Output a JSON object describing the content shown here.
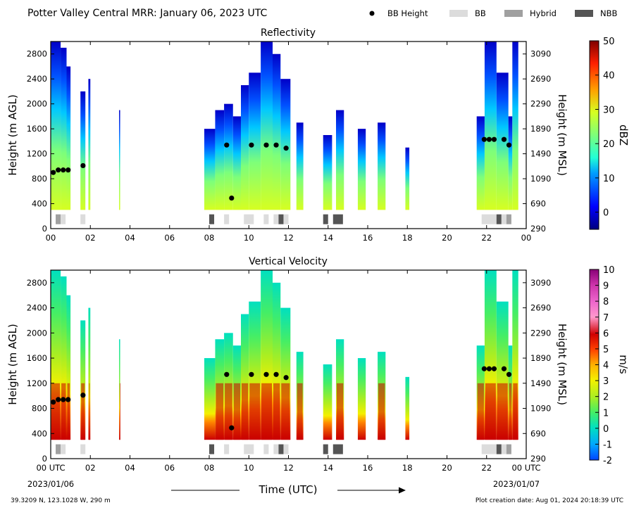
{
  "header": {
    "title": "Potter Valley Central MRR:  January 06, 2023 UTC",
    "legend": [
      {
        "label": "BB Height",
        "color": "#000000",
        "kind": "dot"
      },
      {
        "label": "BB",
        "color": "#dcdcdc",
        "kind": "rect"
      },
      {
        "label": "Hybrid",
        "color": "#a0a0a0",
        "kind": "rect"
      },
      {
        "label": "NBB",
        "color": "#555555",
        "kind": "rect"
      }
    ]
  },
  "footer": {
    "location": "39.3209 N, 123.1028 W, 290 m",
    "creation": "Plot creation date: Aug 01, 2024 20:18:39 UTC",
    "xlabel": "Time (UTC)",
    "start_date": "2023/01/06",
    "end_date": "2023/01/07"
  },
  "chart_data": [
    {
      "type": "heatmap",
      "title": "Reflectivity",
      "xlabel": "Time (UTC)",
      "ylabel": "Height (m AGL)",
      "y2label": "Height (m MSL)",
      "xlim": [
        0,
        24
      ],
      "ylim": [
        0,
        3000
      ],
      "x_ticks": [
        "00",
        "02",
        "04",
        "06",
        "08",
        "10",
        "12",
        "14",
        "16",
        "18",
        "20",
        "22",
        "00"
      ],
      "y_ticks": [
        "0",
        "400",
        "800",
        "1200",
        "1600",
        "2000",
        "2400",
        "2800"
      ],
      "y2_ticks": [
        "290",
        "690",
        "1090",
        "1490",
        "1890",
        "2290",
        "2690",
        "3090"
      ],
      "colorbar": {
        "label": "dBZ",
        "min": -5,
        "max": 50,
        "ticks": [
          "0",
          "10",
          "20",
          "30",
          "40",
          "50"
        ]
      },
      "bb_height": [
        [
          0.13,
          900
        ],
        [
          0.38,
          940
        ],
        [
          0.63,
          940
        ],
        [
          0.88,
          940
        ],
        [
          1.63,
          1010
        ],
        [
          8.88,
          1340
        ],
        [
          9.13,
          490
        ],
        [
          10.13,
          1340
        ],
        [
          10.88,
          1340
        ],
        [
          11.38,
          1340
        ],
        [
          11.88,
          1290
        ],
        [
          21.88,
          1430
        ],
        [
          22.13,
          1430
        ],
        [
          22.38,
          1430
        ],
        [
          22.88,
          1430
        ],
        [
          23.13,
          1340
        ]
      ],
      "bb_class": [
        {
          "start": 0.25,
          "end": 0.5,
          "class": "Hybrid"
        },
        {
          "start": 0.5,
          "end": 0.75,
          "class": "BB"
        },
        {
          "start": 1.5,
          "end": 1.75,
          "class": "BB"
        },
        {
          "start": 8.0,
          "end": 8.25,
          "class": "NBB"
        },
        {
          "start": 8.75,
          "end": 9.0,
          "class": "BB"
        },
        {
          "start": 9.75,
          "end": 10.25,
          "class": "BB"
        },
        {
          "start": 10.75,
          "end": 11.0,
          "class": "BB"
        },
        {
          "start": 11.25,
          "end": 11.5,
          "class": "BB"
        },
        {
          "start": 11.5,
          "end": 11.75,
          "class": "NBB"
        },
        {
          "start": 11.75,
          "end": 12.0,
          "class": "BB"
        },
        {
          "start": 13.75,
          "end": 14.0,
          "class": "NBB"
        },
        {
          "start": 14.25,
          "end": 14.75,
          "class": "NBB"
        },
        {
          "start": 21.75,
          "end": 22.5,
          "class": "BB"
        },
        {
          "start": 22.5,
          "end": 22.75,
          "class": "NBB"
        },
        {
          "start": 22.75,
          "end": 23.0,
          "class": "BB"
        },
        {
          "start": 23.0,
          "end": 23.25,
          "class": "Hybrid"
        }
      ]
    },
    {
      "type": "heatmap",
      "title": "Vertical Velocity",
      "xlabel": "Time (UTC)",
      "ylabel": "Height (m AGL)",
      "y2label": "Height (m MSL)",
      "xlim": [
        0,
        24
      ],
      "ylim": [
        0,
        3000
      ],
      "x_ticks": [
        "00 UTC",
        "02",
        "04",
        "06",
        "08",
        "10",
        "12",
        "14",
        "16",
        "18",
        "20",
        "22",
        "00 UTC"
      ],
      "y_ticks": [
        "0",
        "400",
        "800",
        "1200",
        "1600",
        "2000",
        "2400",
        "2800"
      ],
      "y2_ticks": [
        "290",
        "690",
        "1090",
        "1490",
        "1890",
        "2290",
        "2690",
        "3090"
      ],
      "colorbar": {
        "label": "m/s",
        "min": -2,
        "max": 10,
        "ticks": [
          "-2",
          "-1",
          "0",
          "1",
          "2",
          "3",
          "4",
          "5",
          "6",
          "7",
          "8",
          "9",
          "10"
        ]
      },
      "bb_height": [
        [
          0.13,
          900
        ],
        [
          0.38,
          940
        ],
        [
          0.63,
          940
        ],
        [
          0.88,
          940
        ],
        [
          1.63,
          1010
        ],
        [
          8.88,
          1340
        ],
        [
          9.13,
          490
        ],
        [
          10.13,
          1340
        ],
        [
          10.88,
          1340
        ],
        [
          11.38,
          1340
        ],
        [
          11.88,
          1290
        ],
        [
          21.88,
          1430
        ],
        [
          22.13,
          1430
        ],
        [
          22.38,
          1430
        ],
        [
          22.88,
          1430
        ],
        [
          23.13,
          1340
        ]
      ],
      "bb_class": [
        {
          "start": 0.25,
          "end": 0.5,
          "class": "Hybrid"
        },
        {
          "start": 0.5,
          "end": 0.75,
          "class": "BB"
        },
        {
          "start": 1.5,
          "end": 1.75,
          "class": "BB"
        },
        {
          "start": 8.0,
          "end": 8.25,
          "class": "NBB"
        },
        {
          "start": 8.75,
          "end": 9.0,
          "class": "BB"
        },
        {
          "start": 9.75,
          "end": 10.25,
          "class": "BB"
        },
        {
          "start": 10.75,
          "end": 11.0,
          "class": "BB"
        },
        {
          "start": 11.25,
          "end": 11.5,
          "class": "BB"
        },
        {
          "start": 11.5,
          "end": 11.75,
          "class": "NBB"
        },
        {
          "start": 11.75,
          "end": 12.0,
          "class": "BB"
        },
        {
          "start": 13.75,
          "end": 14.0,
          "class": "NBB"
        },
        {
          "start": 14.25,
          "end": 14.75,
          "class": "NBB"
        },
        {
          "start": 21.75,
          "end": 22.5,
          "class": "BB"
        },
        {
          "start": 22.5,
          "end": 22.75,
          "class": "NBB"
        },
        {
          "start": 22.75,
          "end": 23.0,
          "class": "BB"
        },
        {
          "start": 23.0,
          "end": 23.25,
          "class": "Hybrid"
        }
      ]
    }
  ],
  "echo_columns": [
    {
      "start": 0.0,
      "end": 0.5,
      "top": 3000
    },
    {
      "start": 0.5,
      "end": 0.8,
      "top": 2900
    },
    {
      "start": 0.8,
      "end": 1.0,
      "top": 2600
    },
    {
      "start": 1.5,
      "end": 1.75,
      "top": 2200
    },
    {
      "start": 1.9,
      "end": 2.0,
      "top": 2400
    },
    {
      "start": 3.45,
      "end": 3.5,
      "top": 1900
    },
    {
      "start": 7.75,
      "end": 8.3,
      "top": 1600
    },
    {
      "start": 8.3,
      "end": 8.75,
      "top": 1900
    },
    {
      "start": 8.75,
      "end": 9.2,
      "top": 2000
    },
    {
      "start": 9.2,
      "end": 9.6,
      "top": 1800
    },
    {
      "start": 9.6,
      "end": 10.0,
      "top": 2300
    },
    {
      "start": 10.0,
      "end": 10.6,
      "top": 2500
    },
    {
      "start": 10.6,
      "end": 11.2,
      "top": 3000
    },
    {
      "start": 11.2,
      "end": 11.6,
      "top": 2800
    },
    {
      "start": 11.6,
      "end": 12.1,
      "top": 2400
    },
    {
      "start": 12.4,
      "end": 12.75,
      "top": 1700
    },
    {
      "start": 13.75,
      "end": 14.2,
      "top": 1500
    },
    {
      "start": 14.4,
      "end": 14.8,
      "top": 1900
    },
    {
      "start": 15.5,
      "end": 15.9,
      "top": 1600
    },
    {
      "start": 16.5,
      "end": 16.9,
      "top": 1700
    },
    {
      "start": 17.9,
      "end": 18.1,
      "top": 1300
    },
    {
      "start": 21.5,
      "end": 21.9,
      "top": 1800
    },
    {
      "start": 21.9,
      "end": 22.5,
      "top": 3000
    },
    {
      "start": 22.5,
      "end": 23.1,
      "top": 2500
    },
    {
      "start": 23.1,
      "end": 23.3,
      "top": 1800
    },
    {
      "start": 23.3,
      "end": 23.6,
      "top": 3000
    }
  ]
}
